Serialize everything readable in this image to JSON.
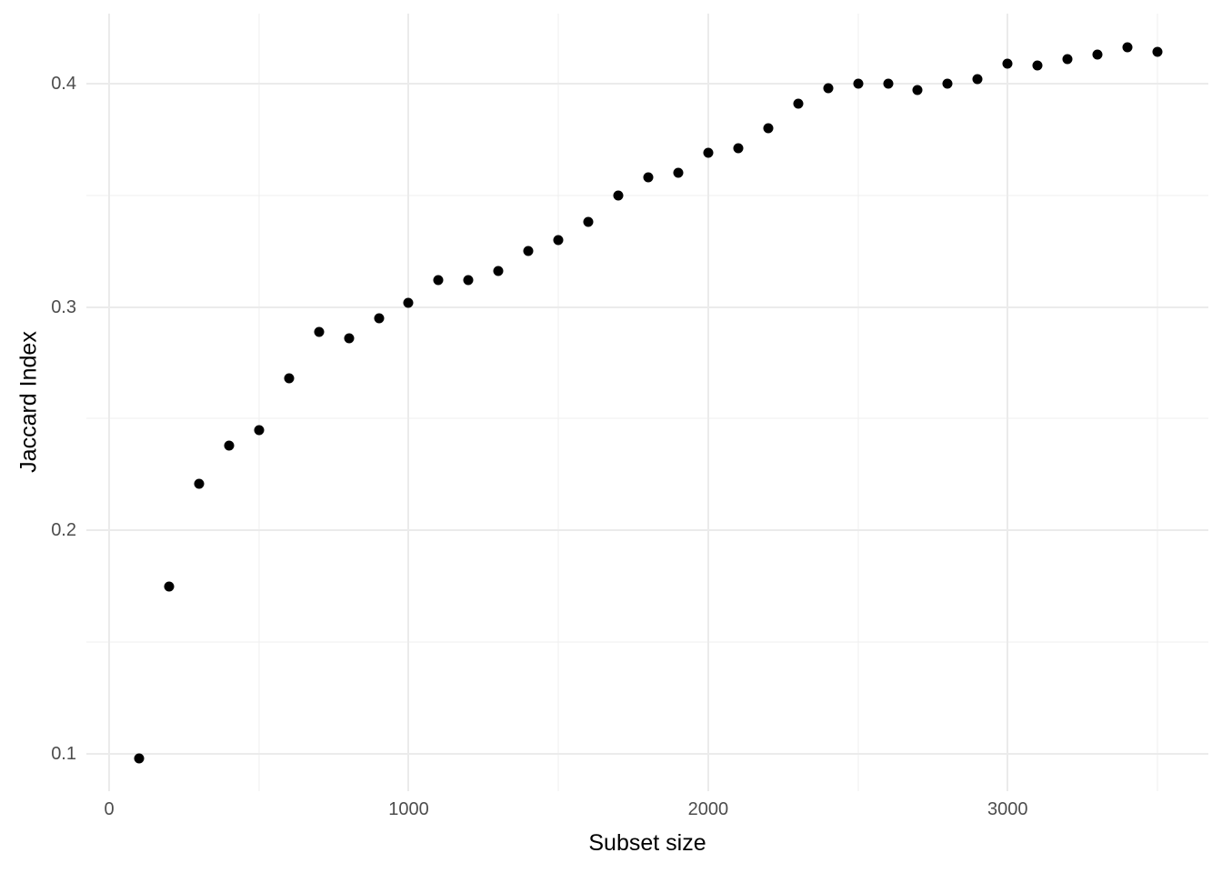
{
  "chart_data": {
    "type": "scatter",
    "title": "",
    "xlabel": "Subset size",
    "ylabel": "Jaccard Index",
    "x": [
      100,
      200,
      300,
      400,
      500,
      600,
      700,
      800,
      900,
      1000,
      1100,
      1200,
      1300,
      1400,
      1500,
      1600,
      1700,
      1800,
      1900,
      2000,
      2100,
      2200,
      2300,
      2400,
      2500,
      2600,
      2700,
      2800,
      2900,
      3000,
      3100,
      3200,
      3300,
      3400,
      3500
    ],
    "series": [
      {
        "name": "jaccard-index",
        "values": [
          0.098,
          0.175,
          0.221,
          0.238,
          0.245,
          0.268,
          0.289,
          0.286,
          0.295,
          0.302,
          0.312,
          0.312,
          0.316,
          0.325,
          0.33,
          0.338,
          0.35,
          0.358,
          0.36,
          0.369,
          0.371,
          0.38,
          0.391,
          0.398,
          0.4,
          0.4,
          0.397,
          0.4,
          0.402,
          0.409,
          0.408,
          0.411,
          0.413,
          0.416,
          0.414
        ]
      }
    ],
    "xlim": [
      -76,
      3670
    ],
    "ylim": [
      0.0834,
      0.4312
    ],
    "x_major_gridlines": [
      0,
      1000,
      2000,
      3000
    ],
    "x_minor_gridlines": [
      500,
      1500,
      2500,
      3500
    ],
    "y_major_gridlines": [
      0.1,
      0.2,
      0.3,
      0.4
    ],
    "y_minor_gridlines": [
      0.15,
      0.25,
      0.35
    ],
    "x_tick_labels": [
      "0",
      "1000",
      "2000",
      "3000"
    ],
    "y_tick_labels": [
      "0.1",
      "0.2",
      "0.3",
      "0.4"
    ],
    "grid": "major-and-minor, no axis lines, no legend, white background",
    "legend_position": "none",
    "colors": {
      "point": "#000000",
      "grid_major": "#ebebeb",
      "grid_minor": "#efefef",
      "tick_label": "#4d4d4d",
      "axis_title": "#000000",
      "background": "#ffffff"
    }
  }
}
